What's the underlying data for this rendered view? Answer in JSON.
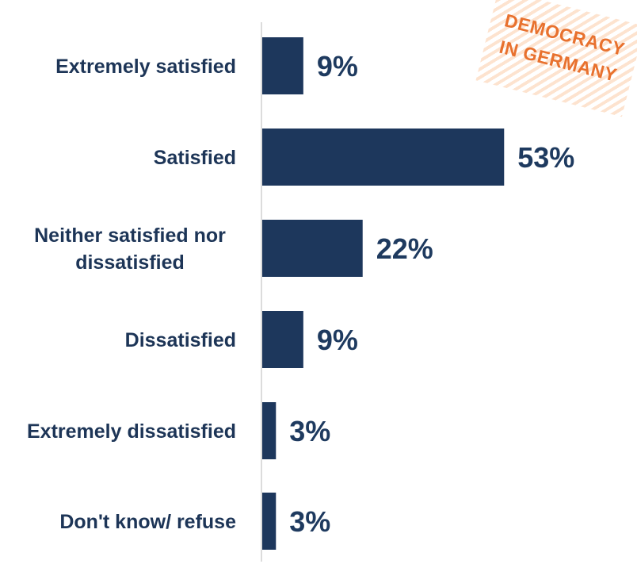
{
  "chart_data": {
    "type": "bar",
    "orientation": "horizontal",
    "categories": [
      "Extremely satisfied",
      "Satisfied",
      "Neither satisfied nor dissatisfied",
      "Dissatisfied",
      "Extremely dissatisfied",
      "Don't know/ refuse"
    ],
    "category_lines": [
      [
        "Extremely satisfied"
      ],
      [
        "Satisfied"
      ],
      [
        "Neither satisfied nor",
        "dissatisfied"
      ],
      [
        "Dissatisfied"
      ],
      [
        "Extremely dissatisfied"
      ],
      [
        "Don't know/ refuse"
      ]
    ],
    "values": [
      9,
      53,
      22,
      9,
      3,
      3
    ],
    "value_labels": [
      "9%",
      "53%",
      "22%",
      "9%",
      "3%",
      "3%"
    ],
    "xlim": [
      0,
      60
    ],
    "grid": false,
    "bar_color": "#1d375c"
  },
  "stamp": {
    "line1": "DEMOCRACY",
    "line2": "IN GERMANY",
    "color": "#e8712e"
  }
}
